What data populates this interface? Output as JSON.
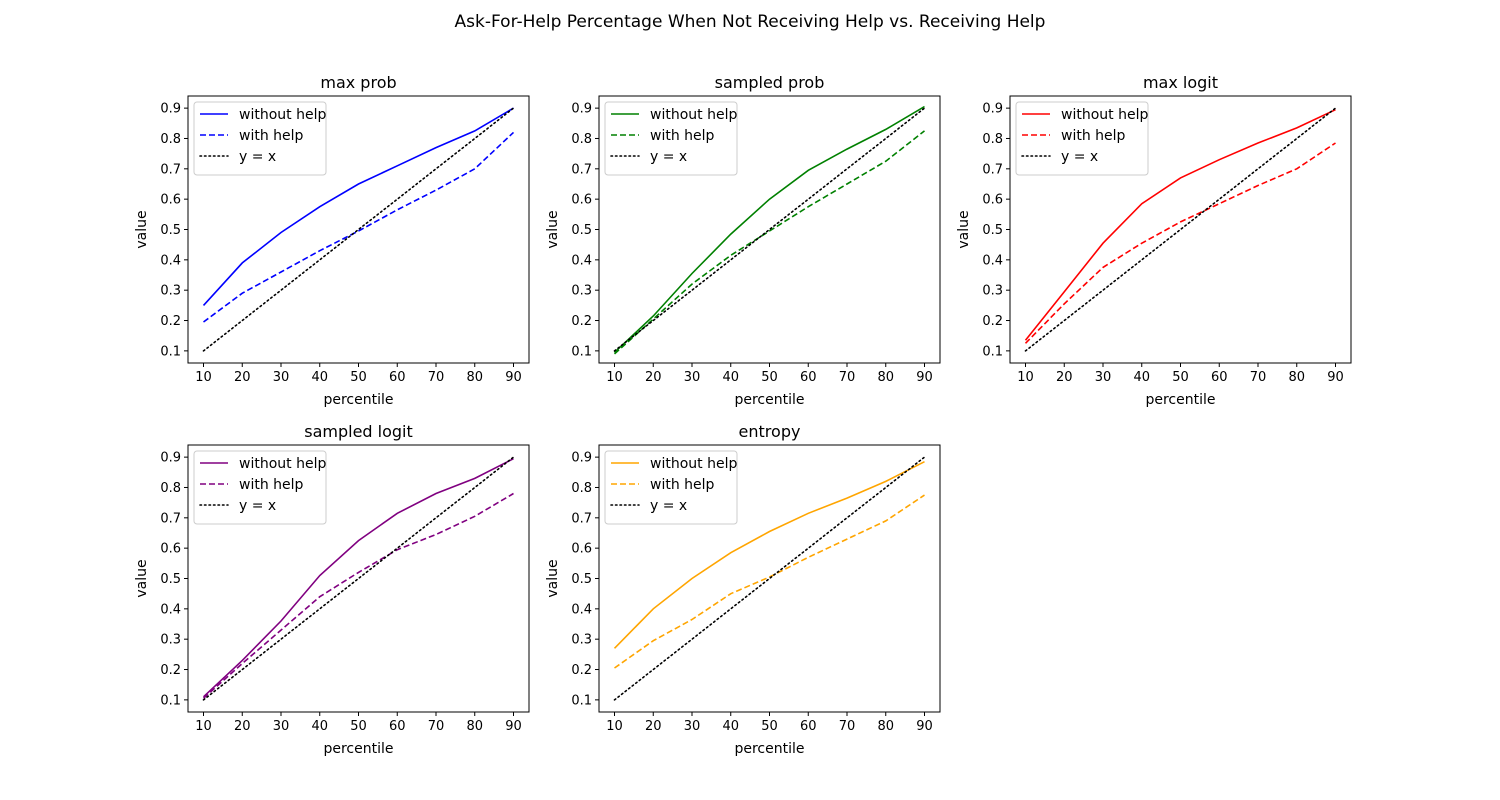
{
  "figure_title": "Ask-For-Help Percentage When Not Receiving Help vs. Receiving Help",
  "chart_data": [
    {
      "type": "line",
      "title": "max prob",
      "xlabel": "percentile",
      "ylabel": "value",
      "color": "#0000ff",
      "x": [
        10,
        20,
        30,
        40,
        50,
        60,
        70,
        80,
        90
      ],
      "xlim": [
        6,
        94
      ],
      "ylim": [
        0.06,
        0.94
      ],
      "xticks": [
        "10",
        "20",
        "30",
        "40",
        "50",
        "60",
        "70",
        "80",
        "90"
      ],
      "yticks": [
        "0.1",
        "0.2",
        "0.3",
        "0.4",
        "0.5",
        "0.6",
        "0.7",
        "0.8",
        "0.9"
      ],
      "legend": "top-left",
      "grid": false,
      "series": [
        {
          "name": "without help",
          "style": "solid",
          "values": [
            0.25,
            0.39,
            0.49,
            0.575,
            0.65,
            0.71,
            0.77,
            0.825,
            0.9
          ]
        },
        {
          "name": "with help",
          "style": "dashed",
          "values": [
            0.195,
            0.29,
            0.36,
            0.43,
            0.495,
            0.565,
            0.63,
            0.7,
            0.82
          ]
        },
        {
          "name": "y = x",
          "style": "dotted",
          "color": "#000000",
          "values": [
            0.1,
            0.2,
            0.3,
            0.4,
            0.5,
            0.6,
            0.7,
            0.8,
            0.9
          ]
        }
      ]
    },
    {
      "type": "line",
      "title": "sampled prob",
      "xlabel": "percentile",
      "ylabel": "value",
      "color": "#008000",
      "x": [
        10,
        20,
        30,
        40,
        50,
        60,
        70,
        80,
        90
      ],
      "xlim": [
        6,
        94
      ],
      "ylim": [
        0.06,
        0.94
      ],
      "xticks": [
        "10",
        "20",
        "30",
        "40",
        "50",
        "60",
        "70",
        "80",
        "90"
      ],
      "yticks": [
        "0.1",
        "0.2",
        "0.3",
        "0.4",
        "0.5",
        "0.6",
        "0.7",
        "0.8",
        "0.9"
      ],
      "legend": "top-left",
      "grid": false,
      "series": [
        {
          "name": "without help",
          "style": "solid",
          "values": [
            0.095,
            0.215,
            0.355,
            0.485,
            0.6,
            0.695,
            0.765,
            0.83,
            0.905
          ]
        },
        {
          "name": "with help",
          "style": "dashed",
          "values": [
            0.09,
            0.205,
            0.32,
            0.415,
            0.495,
            0.575,
            0.65,
            0.725,
            0.825
          ]
        },
        {
          "name": "y = x",
          "style": "dotted",
          "color": "#000000",
          "values": [
            0.1,
            0.2,
            0.3,
            0.4,
            0.5,
            0.6,
            0.7,
            0.8,
            0.9
          ]
        }
      ]
    },
    {
      "type": "line",
      "title": "max logit",
      "xlabel": "percentile",
      "ylabel": "value",
      "color": "#ff0000",
      "x": [
        10,
        20,
        30,
        40,
        50,
        60,
        70,
        80,
        90
      ],
      "xlim": [
        6,
        94
      ],
      "ylim": [
        0.06,
        0.94
      ],
      "xticks": [
        "10",
        "20",
        "30",
        "40",
        "50",
        "60",
        "70",
        "80",
        "90"
      ],
      "yticks": [
        "0.1",
        "0.2",
        "0.3",
        "0.4",
        "0.5",
        "0.6",
        "0.7",
        "0.8",
        "0.9"
      ],
      "legend": "top-left",
      "grid": false,
      "series": [
        {
          "name": "without help",
          "style": "solid",
          "values": [
            0.135,
            0.295,
            0.455,
            0.585,
            0.67,
            0.73,
            0.785,
            0.835,
            0.895
          ]
        },
        {
          "name": "with help",
          "style": "dashed",
          "values": [
            0.125,
            0.255,
            0.375,
            0.455,
            0.525,
            0.585,
            0.645,
            0.7,
            0.785
          ]
        },
        {
          "name": "y = x",
          "style": "dotted",
          "color": "#000000",
          "values": [
            0.1,
            0.2,
            0.3,
            0.4,
            0.5,
            0.6,
            0.7,
            0.8,
            0.9
          ]
        }
      ]
    },
    {
      "type": "line",
      "title": "sampled logit",
      "xlabel": "percentile",
      "ylabel": "value",
      "color": "#800080",
      "x": [
        10,
        20,
        30,
        40,
        50,
        60,
        70,
        80,
        90
      ],
      "xlim": [
        6,
        94
      ],
      "ylim": [
        0.06,
        0.94
      ],
      "xticks": [
        "10",
        "20",
        "30",
        "40",
        "50",
        "60",
        "70",
        "80",
        "90"
      ],
      "yticks": [
        "0.1",
        "0.2",
        "0.3",
        "0.4",
        "0.5",
        "0.6",
        "0.7",
        "0.8",
        "0.9"
      ],
      "legend": "top-left",
      "grid": false,
      "series": [
        {
          "name": "without help",
          "style": "solid",
          "values": [
            0.11,
            0.23,
            0.36,
            0.51,
            0.625,
            0.715,
            0.78,
            0.83,
            0.895
          ]
        },
        {
          "name": "with help",
          "style": "dashed",
          "values": [
            0.105,
            0.22,
            0.33,
            0.44,
            0.52,
            0.595,
            0.645,
            0.705,
            0.78
          ]
        },
        {
          "name": "y = x",
          "style": "dotted",
          "color": "#000000",
          "values": [
            0.1,
            0.2,
            0.3,
            0.4,
            0.5,
            0.6,
            0.7,
            0.8,
            0.9
          ]
        }
      ]
    },
    {
      "type": "line",
      "title": "entropy",
      "xlabel": "percentile",
      "ylabel": "value",
      "color": "#ffa500",
      "x": [
        10,
        20,
        30,
        40,
        50,
        60,
        70,
        80,
        90
      ],
      "xlim": [
        6,
        94
      ],
      "ylim": [
        0.06,
        0.94
      ],
      "xticks": [
        "10",
        "20",
        "30",
        "40",
        "50",
        "60",
        "70",
        "80",
        "90"
      ],
      "yticks": [
        "0.1",
        "0.2",
        "0.3",
        "0.4",
        "0.5",
        "0.6",
        "0.7",
        "0.8",
        "0.9"
      ],
      "legend": "top-left",
      "grid": false,
      "series": [
        {
          "name": "without help",
          "style": "solid",
          "values": [
            0.27,
            0.4,
            0.5,
            0.585,
            0.655,
            0.715,
            0.765,
            0.82,
            0.885
          ]
        },
        {
          "name": "with help",
          "style": "dashed",
          "values": [
            0.205,
            0.295,
            0.365,
            0.45,
            0.505,
            0.57,
            0.63,
            0.69,
            0.775
          ]
        },
        {
          "name": "y = x",
          "style": "dotted",
          "color": "#000000",
          "values": [
            0.1,
            0.2,
            0.3,
            0.4,
            0.5,
            0.6,
            0.7,
            0.8,
            0.9
          ]
        }
      ]
    }
  ]
}
